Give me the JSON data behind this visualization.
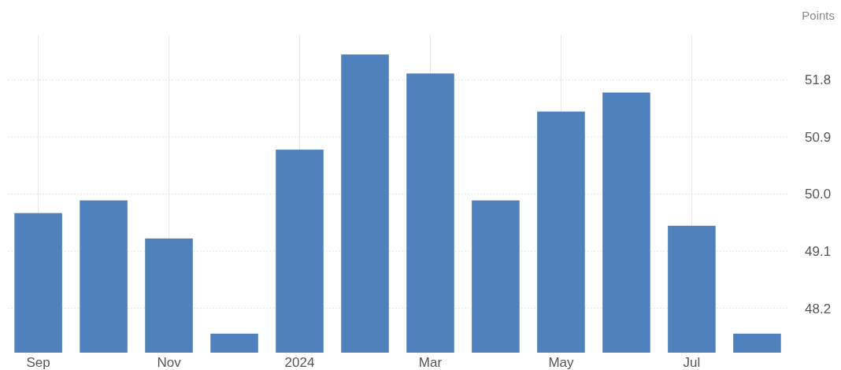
{
  "chart_data": {
    "type": "bar",
    "ylabel": "Points",
    "categories": [
      "Sep",
      null,
      "Nov",
      null,
      "2024",
      null,
      "Mar",
      null,
      "May",
      null,
      "Jul",
      null
    ],
    "values": [
      49.7,
      49.9,
      49.3,
      47.8,
      50.7,
      52.2,
      51.9,
      49.9,
      51.3,
      51.6,
      49.5,
      47.8
    ],
    "color": "#4f81bd",
    "ylim": [
      47.5,
      52.5
    ],
    "yticks": [
      48.2,
      49.1,
      {
        "value": 50,
        "label": "50.0"
      },
      50.9,
      51.8
    ],
    "grid": true
  }
}
